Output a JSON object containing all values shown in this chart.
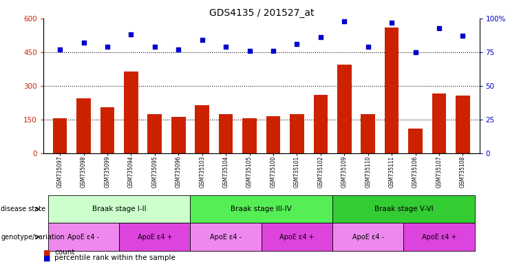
{
  "title": "GDS4135 / 201527_at",
  "samples": [
    "GSM735097",
    "GSM735098",
    "GSM735099",
    "GSM735094",
    "GSM735095",
    "GSM735096",
    "GSM735103",
    "GSM735104",
    "GSM735105",
    "GSM735100",
    "GSM735101",
    "GSM735102",
    "GSM735109",
    "GSM735110",
    "GSM735111",
    "GSM735106",
    "GSM735107",
    "GSM735108"
  ],
  "counts": [
    155,
    245,
    205,
    365,
    175,
    160,
    215,
    175,
    155,
    165,
    175,
    260,
    395,
    175,
    560,
    110,
    265,
    255
  ],
  "percentiles": [
    77,
    82,
    79,
    88,
    79,
    77,
    84,
    79,
    76,
    76,
    81,
    86,
    98,
    79,
    97,
    75,
    93,
    87
  ],
  "bar_color": "#cc2200",
  "dot_color": "#0000cc",
  "ylim_left": [
    0,
    600
  ],
  "ylim_right": [
    0,
    100
  ],
  "yticks_left": [
    0,
    150,
    300,
    450,
    600
  ],
  "yticks_right": [
    0,
    25,
    50,
    75,
    100
  ],
  "grid_values": [
    150,
    300,
    450
  ],
  "disease_groups": [
    {
      "label": "Braak stage I-II",
      "start": 0,
      "end": 6,
      "color": "#ccffcc"
    },
    {
      "label": "Braak stage III-IV",
      "start": 6,
      "end": 12,
      "color": "#55ee55"
    },
    {
      "label": "Braak stage V-VI",
      "start": 12,
      "end": 18,
      "color": "#33cc33"
    }
  ],
  "genotype_groups": [
    {
      "label": "ApoE ε4 -",
      "start": 0,
      "end": 3,
      "color": "#ee88ee"
    },
    {
      "label": "ApoE ε4 +",
      "start": 3,
      "end": 6,
      "color": "#dd44dd"
    },
    {
      "label": "ApoE ε4 -",
      "start": 6,
      "end": 9,
      "color": "#ee88ee"
    },
    {
      "label": "ApoE ε4 +",
      "start": 9,
      "end": 12,
      "color": "#dd44dd"
    },
    {
      "label": "ApoE ε4 -",
      "start": 12,
      "end": 15,
      "color": "#ee88ee"
    },
    {
      "label": "ApoE ε4 +",
      "start": 15,
      "end": 18,
      "color": "#dd44dd"
    }
  ],
  "legend_count_label": "count",
  "legend_pct_label": "percentile rank within the sample",
  "disease_state_label": "disease state",
  "genotype_label": "genotype/variation",
  "bg_color": "#ffffff"
}
